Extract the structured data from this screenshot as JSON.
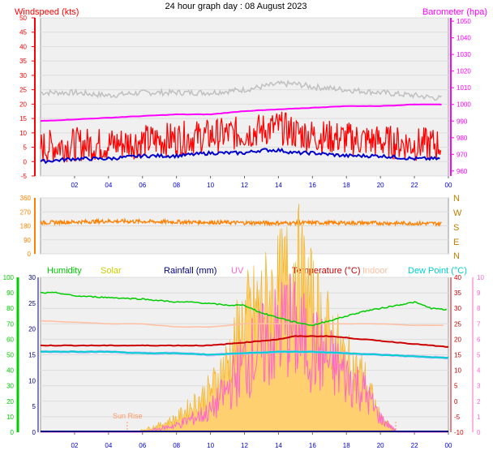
{
  "title": "24 hour graph day : 08 August 2023",
  "colors": {
    "wind": "#ff0000",
    "wind_dir": "#ff8000",
    "barometer": "#ff00ff",
    "humidity": "#00cc00",
    "solar": "#cccc00",
    "rain": "#000080",
    "uv": "#ff66cc",
    "temperature": "#cc0000",
    "indoor": "#ffbfa0",
    "dewpoint": "#00d0d0",
    "gust": "#c0c0c0",
    "avg": "#0000cc",
    "axis_tick": "#0000cc",
    "plot_bg": "#f0f0f0"
  },
  "chart_data": [
    {
      "type": "line",
      "title": "24 hour graph day : 08 August 2023",
      "left_label": "Windspeed (kts)",
      "right_label": "Barometer (hpa)",
      "x_ticks": [
        "02",
        "04",
        "06",
        "08",
        "10",
        "12",
        "14",
        "16",
        "18",
        "20",
        "22",
        "00"
      ],
      "left_ticks": [
        "-5",
        "0",
        "5",
        "10",
        "15",
        "20",
        "25",
        "30",
        "35",
        "40",
        "45",
        "50"
      ],
      "right_ticks": [
        "960",
        "970",
        "980",
        "990",
        "1000",
        "1010",
        "1020",
        "1030",
        "1040",
        "1050"
      ],
      "ylim_left": [
        -5,
        50
      ],
      "ylim_right": [
        957,
        1052
      ],
      "series": [
        {
          "x": [
            0,
            2,
            4,
            6,
            8,
            10,
            12,
            13,
            14,
            15,
            16,
            18,
            20,
            22,
            23.5
          ],
          "values": [
            24,
            24,
            23,
            24,
            24,
            24,
            25,
            26,
            27,
            27,
            26,
            25,
            24,
            23,
            22
          ],
          "axis": "left"
        },
        {
          "x": [
            0,
            2,
            4,
            6,
            8,
            10,
            12,
            13,
            14,
            15,
            16,
            18,
            20,
            22,
            23.5
          ],
          "values": [
            5,
            6,
            6,
            7,
            8,
            9,
            10,
            11,
            12,
            10,
            9,
            8,
            7,
            6,
            6
          ],
          "axis": "left"
        },
        {
          "x": [
            0,
            2,
            4,
            6,
            8,
            10,
            12,
            13,
            14,
            15,
            16,
            18,
            20,
            22,
            23.5
          ],
          "values": [
            0,
            1,
            1,
            2,
            2,
            3,
            3,
            4,
            4,
            3,
            3,
            2,
            2,
            1,
            1
          ],
          "axis": "left"
        },
        {
          "x": [
            0,
            2,
            4,
            6,
            8,
            10,
            12,
            14,
            16,
            18,
            20,
            22,
            23.5
          ],
          "values": [
            990,
            991,
            992,
            993,
            994,
            994,
            996,
            997,
            998,
            999,
            999,
            1000,
            1000
          ],
          "axis": "right"
        }
      ]
    },
    {
      "type": "line",
      "left_ticks": [
        "0",
        "90",
        "180",
        "270",
        "360"
      ],
      "right_ticks": [
        "N",
        "E",
        "S",
        "W",
        "N"
      ],
      "ylim": [
        0,
        360
      ],
      "series": [
        {
          "x": [
            0,
            2,
            4,
            6,
            8,
            10,
            12,
            14,
            16,
            18,
            20,
            22,
            23.5
          ],
          "values": [
            200,
            205,
            210,
            208,
            205,
            203,
            200,
            198,
            200,
            199,
            198,
            196,
            195
          ]
        }
      ]
    },
    {
      "type": "line",
      "legend": [
        "Humidity",
        "Solar",
        "Rainfall (mm)",
        "UV",
        "Temperature (°C)",
        "Indoor",
        "Dew Point (°C)"
      ],
      "hum_ticks": [
        "0",
        "10",
        "20",
        "30",
        "40",
        "50",
        "60",
        "70",
        "80",
        "90",
        "100"
      ],
      "rain_ticks": [
        "0",
        "5",
        "10",
        "15",
        "20",
        "25",
        "30"
      ],
      "temp_ticks": [
        "-10",
        "-5",
        "0",
        "5",
        "10",
        "15",
        "20",
        "25",
        "30",
        "35",
        "40"
      ],
      "uv_ticks": [
        "0",
        "1",
        "2",
        "3",
        "4",
        "5",
        "6",
        "7",
        "8",
        "9",
        "10"
      ],
      "sunrise_label": "Sun Rise",
      "sunrise_hour": 5.1,
      "sunset_hour": 20.9,
      "series": [
        {
          "name": "Humidity",
          "x": [
            0,
            1,
            2,
            4,
            6,
            8,
            9,
            10,
            11,
            12,
            13,
            14,
            15,
            16,
            17,
            18,
            19,
            20,
            21,
            22,
            23,
            24
          ],
          "values": [
            90,
            90,
            88,
            87,
            86,
            84,
            84,
            83,
            82,
            82,
            77,
            74,
            71,
            69,
            72,
            75,
            78,
            80,
            82,
            84,
            80,
            79
          ],
          "axis": "hum"
        },
        {
          "name": "Temperature",
          "x": [
            0,
            2,
            4,
            6,
            8,
            10,
            11,
            12,
            13,
            14,
            15,
            16,
            17,
            18,
            19,
            20,
            21,
            22,
            23,
            24
          ],
          "values": [
            18,
            18,
            18,
            18,
            18,
            18,
            18.5,
            19,
            19.5,
            20,
            21,
            21,
            21,
            20.5,
            20,
            19.5,
            19,
            18.5,
            18,
            17.5
          ],
          "axis": "temp"
        },
        {
          "name": "Indoor",
          "x": [
            0,
            2,
            4,
            6,
            8,
            10,
            12,
            14,
            16,
            18,
            20,
            22,
            24
          ],
          "values": [
            26,
            25.5,
            25,
            25,
            24,
            24,
            25,
            25,
            25,
            25,
            25,
            24.5,
            24.5
          ],
          "axis": "temp"
        },
        {
          "name": "Dew Point",
          "x": [
            0,
            2,
            4,
            6,
            8,
            10,
            12,
            14,
            16,
            18,
            20,
            22,
            24
          ],
          "values": [
            16,
            16,
            16,
            15.5,
            15.5,
            15,
            15.5,
            16,
            16,
            15.5,
            15,
            14.5,
            14
          ],
          "axis": "temp"
        },
        {
          "name": "Solar",
          "x": [
            0,
            5.5,
            7,
            8,
            9,
            10,
            11,
            12,
            13,
            14,
            15,
            16,
            17,
            18,
            19,
            20,
            21,
            24
          ],
          "values": [
            0,
            0,
            0.5,
            1,
            2,
            3,
            5,
            8,
            9,
            10,
            12,
            9,
            7,
            5,
            4,
            1,
            0,
            0
          ],
          "axis": "uv"
        },
        {
          "name": "UV",
          "x": [
            0,
            6,
            8,
            10,
            11,
            12,
            13,
            14,
            14.5,
            15,
            16,
            17,
            18,
            19,
            20,
            21,
            24
          ],
          "values": [
            0,
            0,
            0.5,
            1.5,
            3,
            5,
            6,
            7,
            8,
            7,
            6,
            5,
            4,
            3,
            1,
            0,
            0
          ],
          "axis": "uv"
        }
      ]
    }
  ]
}
